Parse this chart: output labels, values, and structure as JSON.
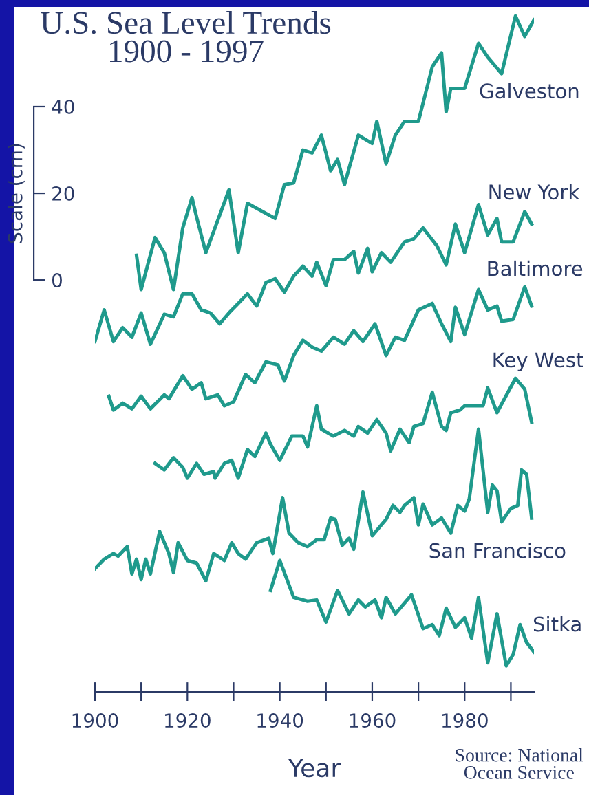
{
  "chart_data": {
    "type": "line",
    "title": "U.S. Sea Level Trends\n1900 - 1997",
    "xlabel": "Year",
    "ylabel": "Scale (cm)",
    "xlim": [
      1900,
      1995
    ],
    "xticks": [
      1900,
      {
        "value": 1910,
        "label": null
      },
      1920,
      {
        "value": 1930,
        "label": null
      },
      1940,
      {
        "value": 1950,
        "label": null
      },
      1960,
      {
        "value": 1970,
        "label": null
      },
      1980,
      {
        "value": 1990,
        "label": null
      }
    ],
    "ylim": [
      -95,
      63
    ],
    "yticks": [
      0,
      20,
      40
    ],
    "grid": false,
    "legend": false,
    "marker": "none",
    "line_style": "solid",
    "annotations": [
      "Source: National\nOcean Service"
    ],
    "series": [
      {
        "name": "Galveston",
        "color": "#1f9a8c",
        "x": [
          1909,
          1910,
          1913,
          1915,
          1917,
          1919,
          1921,
          1922,
          1924,
          1929,
          1931,
          1933,
          1939,
          1941,
          1943,
          1945,
          1947,
          1949,
          1951,
          1952.5,
          1954,
          1957,
          1960,
          1961,
          1963,
          1965,
          1967,
          1970,
          1973,
          1975,
          1976,
          1977,
          1980,
          1983,
          1985,
          1988,
          1991,
          1993,
          1995
        ],
        "values": [
          5.7,
          -2.2,
          9.8,
          6.3,
          -2.2,
          12,
          19,
          14.5,
          6.3,
          20.8,
          6.3,
          17.7,
          14.2,
          22,
          22.4,
          30,
          29.3,
          33.4,
          25.2,
          27.8,
          22,
          33.4,
          31.5,
          36.6,
          26.8,
          33.4,
          36.6,
          36.6,
          49.2,
          52.4,
          38.8,
          44.2,
          44.2,
          54.6,
          51.4,
          47.6,
          60.9,
          56.2,
          60
        ]
      },
      {
        "name": "New York",
        "color": "#1f9a8c",
        "x": [
          1900,
          1902,
          1904,
          1906,
          1908,
          1910,
          1912,
          1915,
          1917,
          1919,
          1921,
          1923,
          1925,
          1927,
          1929,
          1931,
          1933,
          1935,
          1937,
          1939,
          1941,
          1943,
          1945,
          1947,
          1948,
          1950,
          1951.6,
          1954,
          1956,
          1957,
          1959,
          1960,
          1962,
          1964,
          1967,
          1969,
          1971,
          1974,
          1976,
          1978,
          1980,
          1983,
          1985,
          1987,
          1988,
          1990.5,
          1993,
          1994.5
        ],
        "values": [
          -14.2,
          -6.9,
          -14.2,
          -11,
          -13.2,
          -7.6,
          -14.8,
          -7.9,
          -8.5,
          -3.2,
          -3.2,
          -6.9,
          -7.6,
          -10.1,
          -7.6,
          -5.4,
          -3.2,
          -6,
          -0.6,
          0.3,
          -2.8,
          0.9,
          3.2,
          0.9,
          4.1,
          -1.3,
          4.7,
          4.7,
          6.6,
          1.6,
          7.3,
          1.9,
          6.3,
          4.1,
          8.8,
          9.5,
          12,
          7.9,
          3.5,
          12.9,
          6.3,
          17.4,
          10.4,
          14.2,
          8.8,
          8.8,
          15.8,
          12.9
        ]
      },
      {
        "name": "Baltimore",
        "color": "#1f9a8c",
        "x": [
          1903,
          1904,
          1906,
          1908,
          1910,
          1912,
          1915,
          1916,
          1919,
          1921,
          1923,
          1924,
          1926.6,
          1928,
          1930,
          1932.6,
          1934.6,
          1937,
          1939.6,
          1941,
          1943,
          1945,
          1947,
          1949,
          1951.6,
          1954,
          1956,
          1958,
          1960.6,
          1963,
          1965,
          1967,
          1970,
          1973,
          1975,
          1977,
          1978,
          1980,
          1983,
          1985,
          1987,
          1988,
          1990.5,
          1993,
          1994.5
        ],
        "values": [
          -26.8,
          -30,
          -28.4,
          -29.7,
          -26.8,
          -29.7,
          -26.5,
          -27.4,
          -22.1,
          -25.2,
          -23.7,
          -27.4,
          -26.5,
          -29,
          -28.1,
          -21.8,
          -23.7,
          -18.9,
          -19.6,
          -23.3,
          -17.4,
          -13.9,
          -15.5,
          -16.4,
          -13.2,
          -14.8,
          -11.7,
          -14.2,
          -10.1,
          -17.4,
          -13.2,
          -13.9,
          -6.9,
          -5.4,
          -10.1,
          -14.2,
          -6.3,
          -12.6,
          -2.2,
          -6.9,
          -6,
          -9.5,
          -9.1,
          -1.6,
          -6
        ]
      },
      {
        "name": "Key West",
        "color": "#1f9a8c",
        "x": [
          1913,
          1915,
          1917,
          1919,
          1920,
          1922,
          1923.6,
          1925.7,
          1926,
          1928,
          1929.6,
          1931,
          1933,
          1934.6,
          1937,
          1938,
          1940,
          1942.6,
          1945,
          1946,
          1948,
          1949,
          1951.6,
          1954,
          1956,
          1957,
          1959,
          1961,
          1963,
          1964,
          1966,
          1968,
          1969,
          1971,
          1973,
          1975,
          1976,
          1977,
          1979,
          1980,
          1984,
          1985,
          1987,
          1991,
          1993,
          1994.5
        ],
        "values": [
          -42.3,
          -43.8,
          -41,
          -43.2,
          -45.7,
          -42.3,
          -44.8,
          -44.2,
          -45.7,
          -42.3,
          -41.6,
          -45.7,
          -39.1,
          -40.7,
          -35.3,
          -37.9,
          -41.6,
          -36,
          -36,
          -38.5,
          -29,
          -34.4,
          -36,
          -34.7,
          -36,
          -33.8,
          -35.3,
          -32.2,
          -35.3,
          -39.4,
          -34.4,
          -37.5,
          -33.8,
          -33.1,
          -25.9,
          -33.8,
          -34.7,
          -30.6,
          -30,
          -29,
          -29,
          -24.9,
          -30.6,
          -22.7,
          -25.2,
          -32.8
        ]
      },
      {
        "name": "San Francisco",
        "color": "#1f9a8c",
        "x": [
          1900,
          1902,
          1904,
          1905,
          1907,
          1908,
          1909,
          1910,
          1911,
          1912,
          1914,
          1916,
          1917,
          1918,
          1920,
          1922,
          1924,
          1925.7,
          1928,
          1929.6,
          1931,
          1932.6,
          1935,
          1937.6,
          1938.5,
          1940.6,
          1942,
          1944,
          1946,
          1948,
          1949.6,
          1951,
          1952,
          1953.5,
          1955,
          1956,
          1958,
          1960,
          1963,
          1964.5,
          1966,
          1967,
          1969,
          1970,
          1971,
          1973,
          1975,
          1977,
          1978.5,
          1980,
          1981,
          1983,
          1985,
          1986,
          1987,
          1988,
          1990,
          1991.5,
          1992.3,
          1993.4,
          1994.5
        ],
        "values": [
          -66.6,
          -64.4,
          -63.1,
          -63.7,
          -61.5,
          -67.8,
          -64.4,
          -69.1,
          -64.4,
          -67.8,
          -58,
          -63.1,
          -67.5,
          -60.6,
          -64.7,
          -65.3,
          -69.4,
          -63.1,
          -64.7,
          -60.6,
          -63.1,
          -64.4,
          -60.6,
          -59.6,
          -63.1,
          -50.2,
          -58.4,
          -60.6,
          -61.5,
          -59.9,
          -59.9,
          -54.9,
          -55.2,
          -61.2,
          -59.6,
          -62.1,
          -48.9,
          -59,
          -55.2,
          -52,
          -53.6,
          -52,
          -50.2,
          -56.5,
          -51.7,
          -56.5,
          -54.9,
          -58.4,
          -52,
          -53.3,
          -50.5,
          -34.4,
          -53.6,
          -47.3,
          -48.6,
          -55.8,
          -52.7,
          -52,
          -43.8,
          -44.8,
          -54.9
        ]
      },
      {
        "name": "Sitka",
        "color": "#1f9a8c",
        "x": [
          1938,
          1940,
          1943,
          1946,
          1948,
          1950,
          1952.5,
          1955,
          1957,
          1958.5,
          1960.6,
          1962,
          1963,
          1965,
          1968.5,
          1971,
          1973,
          1974.5,
          1976,
          1978,
          1980,
          1981.5,
          1983,
          1985,
          1987,
          1989,
          1990.5,
          1992,
          1993.4,
          1995
        ],
        "values": [
          -71.6,
          -64.7,
          -73.2,
          -74.1,
          -73.8,
          -78.9,
          -71.6,
          -77,
          -73.8,
          -75.4,
          -73.8,
          -77.9,
          -73.2,
          -77,
          -72.6,
          -80.4,
          -79.5,
          -82,
          -75.7,
          -80.1,
          -77.9,
          -82.6,
          -73.2,
          -88.3,
          -77,
          -89,
          -86.4,
          -79.5,
          -83.6,
          -85.8
        ]
      }
    ]
  }
}
